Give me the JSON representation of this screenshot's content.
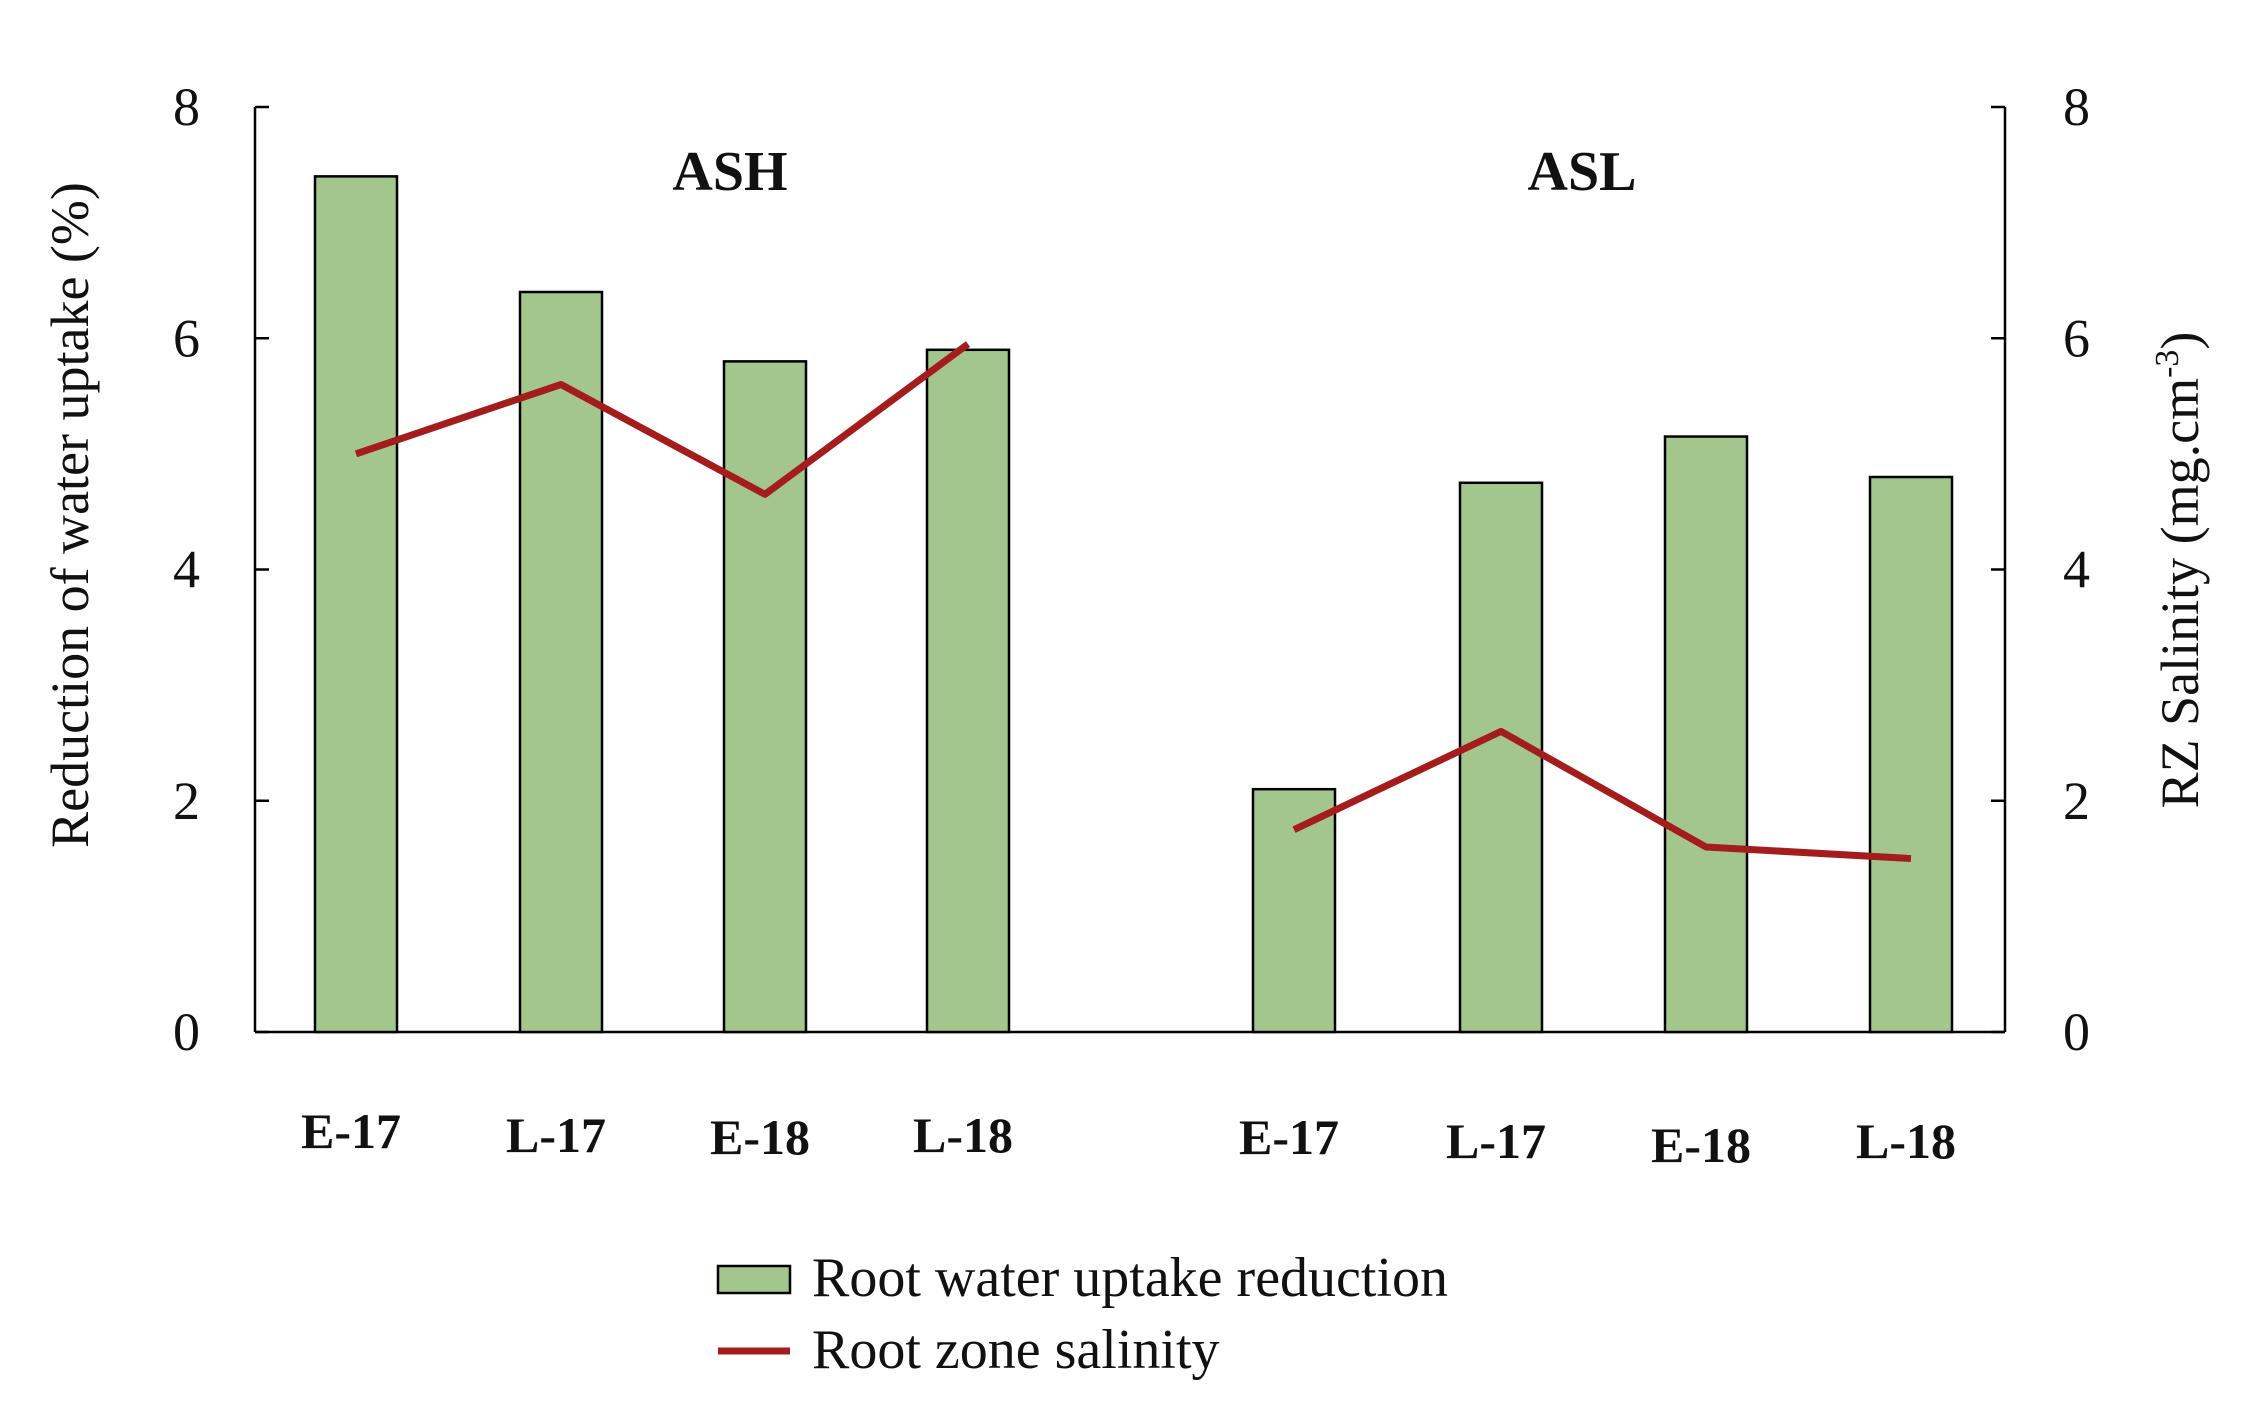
{
  "chart_data": {
    "type": "bar",
    "y_left": {
      "label": "Reduction of  water uptake  (%)",
      "lim": [
        0,
        8
      ],
      "ticks": [
        0,
        2,
        4,
        6,
        8
      ]
    },
    "y_right": {
      "label_prefix": "RZ Salinity (mg.cm",
      "label_sup": "-3",
      "label_suffix": ")",
      "lim": [
        0,
        8
      ],
      "ticks": [
        0,
        2,
        4,
        6,
        8
      ]
    },
    "groups": [
      {
        "name": "ASH",
        "categories": [
          "E-17",
          "L-17",
          "E-18",
          "L-18"
        ],
        "root_water_uptake_reduction": [
          7.4,
          6.4,
          5.8,
          5.9
        ],
        "root_zone_salinity": [
          5.0,
          5.6,
          4.65,
          5.95
        ]
      },
      {
        "name": "ASL",
        "categories": [
          "E-17",
          "L-17",
          "E-18",
          "L-18"
        ],
        "root_water_uptake_reduction": [
          2.1,
          4.75,
          5.15,
          4.8
        ],
        "root_zone_salinity": [
          1.75,
          2.6,
          1.6,
          1.5
        ]
      }
    ],
    "series": [
      {
        "name": "Root water uptake reduction",
        "type": "bar",
        "axis": "left",
        "color": "#a3c68c"
      },
      {
        "name": "Root zone salinity",
        "type": "line",
        "axis": "right",
        "color": "#a51c1c"
      }
    ],
    "legend_position": "bottom-center"
  }
}
